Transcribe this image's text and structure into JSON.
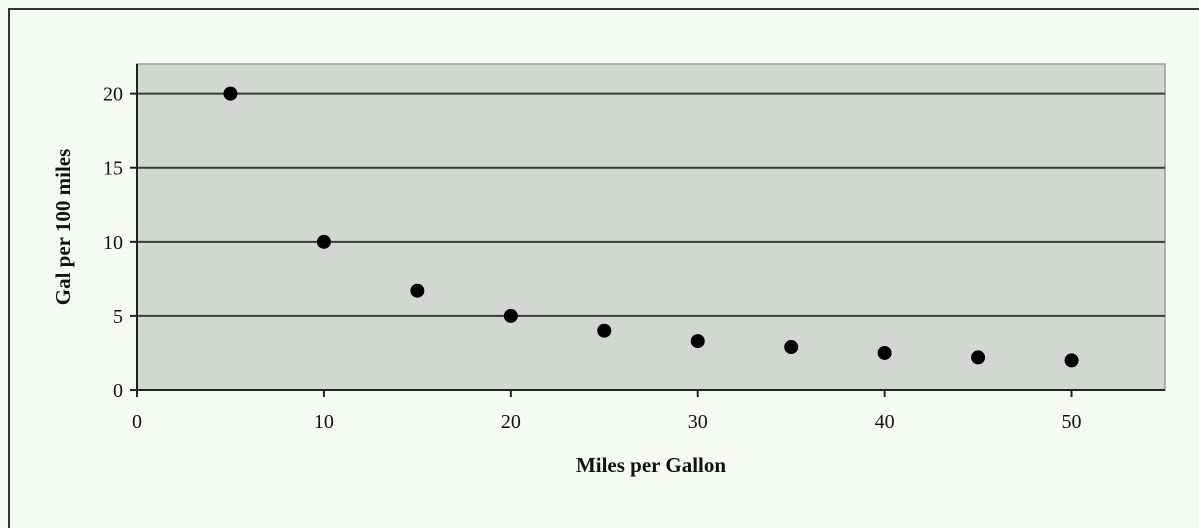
{
  "chart_data": {
    "type": "scatter",
    "title": "",
    "xlabel": "Miles per Gallon",
    "ylabel": "Gal per 100 miles",
    "xlim": [
      0,
      55
    ],
    "ylim": [
      0,
      22
    ],
    "x_ticks": [
      0,
      10,
      20,
      30,
      40,
      50
    ],
    "y_ticks": [
      0,
      5,
      10,
      15,
      20
    ],
    "grid": "horizontal",
    "legend": "none",
    "points": [
      {
        "x": 5,
        "y": 20
      },
      {
        "x": 10,
        "y": 10
      },
      {
        "x": 15,
        "y": 6.7
      },
      {
        "x": 20,
        "y": 5
      },
      {
        "x": 25,
        "y": 4
      },
      {
        "x": 30,
        "y": 3.3
      },
      {
        "x": 35,
        "y": 2.9
      },
      {
        "x": 40,
        "y": 2.5
      },
      {
        "x": 45,
        "y": 2.2
      },
      {
        "x": 50,
        "y": 2
      }
    ],
    "colors": {
      "plot_background": "#d3d6d2",
      "page_background": "#f7faf6",
      "marker": "#000000",
      "gridline": "#3a3a3a"
    }
  }
}
